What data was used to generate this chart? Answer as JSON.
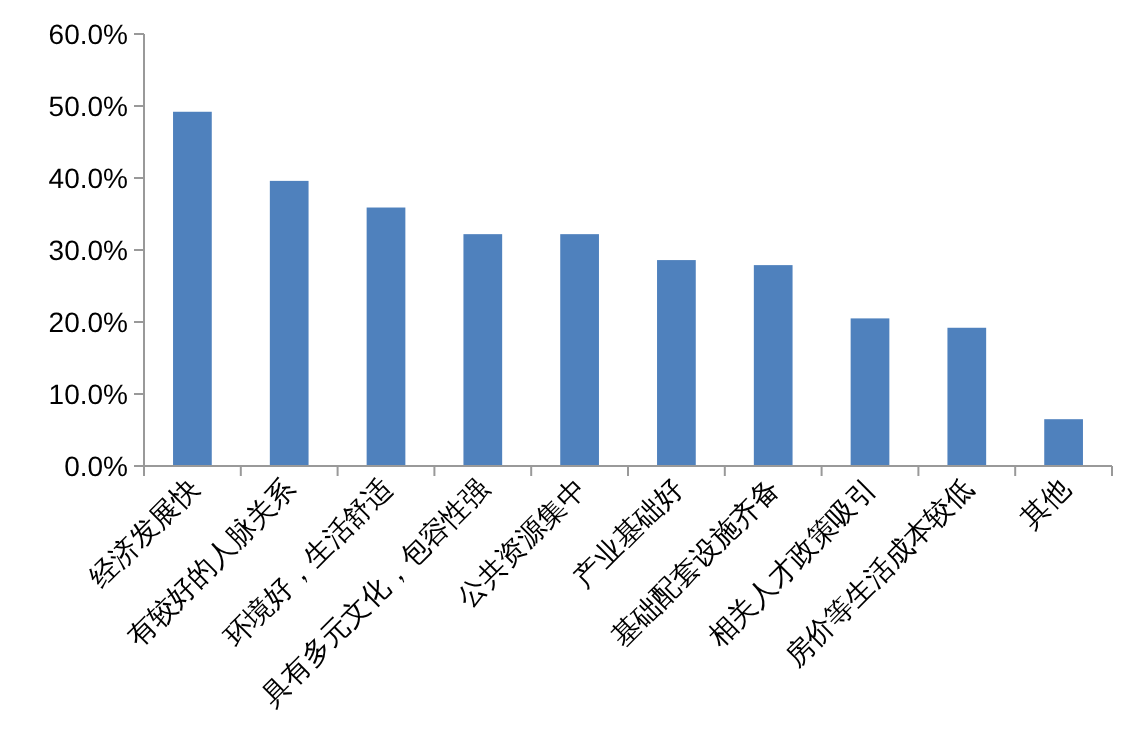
{
  "chart_data": {
    "type": "bar",
    "categories": [
      "经济发展快",
      "有较好的人脉关系",
      "环境好，生活舒适",
      "具有多元文化，包容性强",
      "公共资源集中",
      "产业基础好",
      "基础配套设施齐备",
      "相关人才政策吸引",
      "房价等生活成本较低",
      "其他"
    ],
    "values": [
      49.2,
      39.6,
      35.9,
      32.2,
      32.2,
      28.6,
      27.9,
      20.5,
      19.2,
      6.5
    ],
    "color": "#4f81bd",
    "ylim": [
      0,
      60
    ],
    "yticks": [
      {
        "value": 0,
        "label": "0.0%"
      },
      {
        "value": 10,
        "label": "10.0%"
      },
      {
        "value": 20,
        "label": "20.0%"
      },
      {
        "value": 30,
        "label": "30.0%"
      },
      {
        "value": 40,
        "label": "40.0%"
      },
      {
        "value": 50,
        "label": "50.0%"
      },
      {
        "value": 60,
        "label": "60.0%"
      }
    ],
    "grid": false
  }
}
